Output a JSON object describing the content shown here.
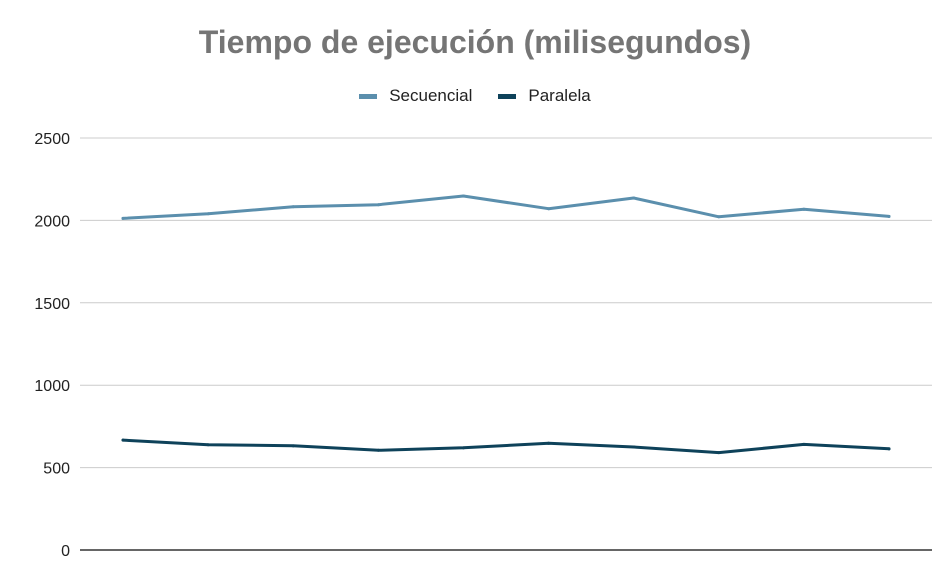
{
  "chart_data": {
    "type": "line",
    "title": "Tiempo de ejecución (milisegundos)",
    "xlabel": "",
    "ylabel": "",
    "ylim": [
      0,
      2500
    ],
    "yticks": [
      "0",
      "500",
      "1000",
      "1500",
      "2000",
      "2500"
    ],
    "x": [
      1,
      2,
      3,
      4,
      5,
      6,
      7,
      8,
      9,
      10
    ],
    "grid": true,
    "legend_position": "top",
    "series": [
      {
        "name": "Secuencial",
        "color": "#5b8fad",
        "values": [
          2012,
          2040,
          2083,
          2095,
          2148,
          2071,
          2136,
          2022,
          2068,
          2024
        ]
      },
      {
        "name": "Paralela",
        "color": "#0e425a",
        "values": [
          667,
          639,
          632,
          605,
          620,
          648,
          625,
          591,
          641,
          614
        ]
      }
    ]
  }
}
